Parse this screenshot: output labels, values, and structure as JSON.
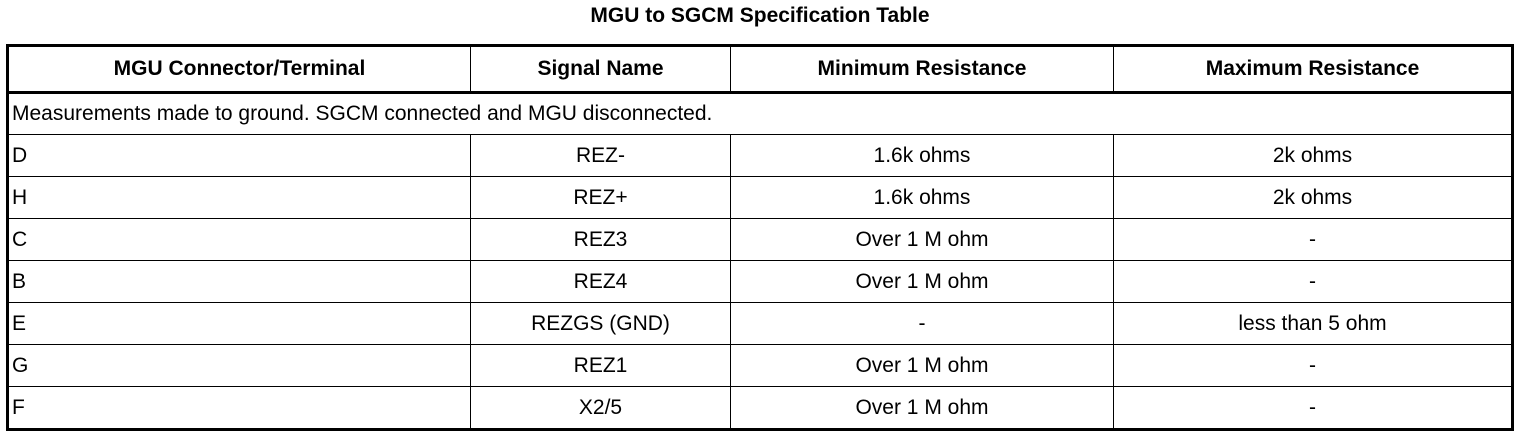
{
  "title": "MGU to SGCM Specification Table",
  "table": {
    "headers": [
      "MGU Connector/Terminal",
      "Signal Name",
      "Minimum Resistance",
      "Maximum Resistance"
    ],
    "note": "Measurements made to ground. SGCM connected and MGU disconnected.",
    "rows": [
      [
        "D",
        "REZ-",
        "1.6k ohms",
        "2k ohms"
      ],
      [
        "H",
        "REZ+",
        "1.6k ohms",
        "2k ohms"
      ],
      [
        "C",
        "REZ3",
        "Over 1 M ohm",
        "-"
      ],
      [
        "B",
        "REZ4",
        "Over 1 M ohm",
        "-"
      ],
      [
        "E",
        "REZGS (GND)",
        "-",
        "less than 5 ohm"
      ],
      [
        "G",
        "REZ1",
        "Over 1 M ohm",
        "-"
      ],
      [
        "F",
        "X2/5",
        "Over 1 M ohm",
        "-"
      ]
    ]
  }
}
